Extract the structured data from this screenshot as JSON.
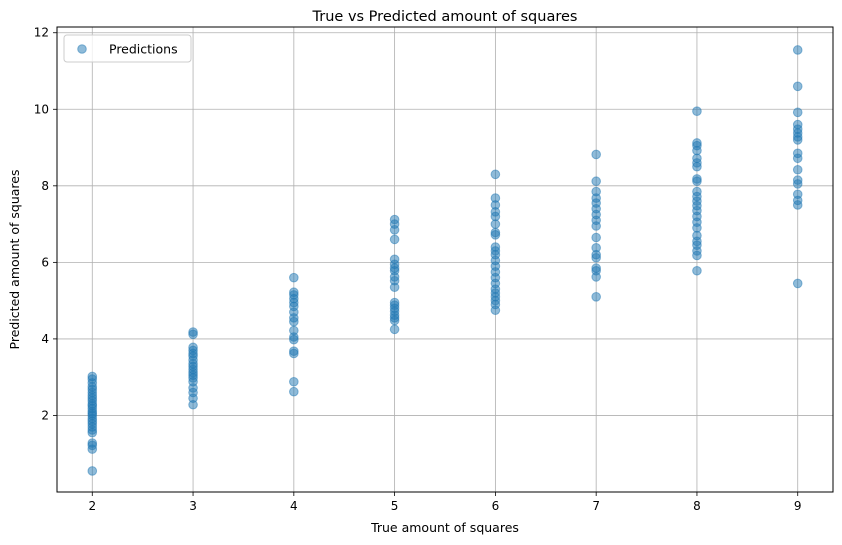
{
  "chart_data": {
    "type": "scatter",
    "title": "True vs Predicted amount of squares",
    "xlabel": "True amount of squares",
    "ylabel": "Predicted amount of squares",
    "xlim": [
      1.65,
      9.35
    ],
    "ylim": [
      0.0,
      12.15
    ],
    "xticks": [
      2,
      3,
      4,
      5,
      6,
      7,
      8,
      9
    ],
    "yticks": [
      2,
      4,
      6,
      8,
      10,
      12
    ],
    "grid": true,
    "legend_position": "top-left",
    "series": [
      {
        "name": "Predictions",
        "color": "#1f77b4",
        "alpha": 0.5,
        "points": [
          [
            2,
            0.55
          ],
          [
            2,
            1.12
          ],
          [
            2,
            1.22
          ],
          [
            2,
            1.28
          ],
          [
            2,
            1.55
          ],
          [
            2,
            1.62
          ],
          [
            2,
            1.7
          ],
          [
            2,
            1.78
          ],
          [
            2,
            1.85
          ],
          [
            2,
            1.92
          ],
          [
            2,
            2.0
          ],
          [
            2,
            2.05
          ],
          [
            2,
            2.1
          ],
          [
            2,
            2.18
          ],
          [
            2,
            2.25
          ],
          [
            2,
            2.3
          ],
          [
            2,
            2.38
          ],
          [
            2,
            2.45
          ],
          [
            2,
            2.52
          ],
          [
            2,
            2.6
          ],
          [
            2,
            2.68
          ],
          [
            2,
            2.75
          ],
          [
            2,
            2.85
          ],
          [
            2,
            2.95
          ],
          [
            2,
            3.02
          ],
          [
            3,
            2.28
          ],
          [
            3,
            2.45
          ],
          [
            3,
            2.6
          ],
          [
            3,
            2.72
          ],
          [
            3,
            2.88
          ],
          [
            3,
            2.98
          ],
          [
            3,
            3.05
          ],
          [
            3,
            3.12
          ],
          [
            3,
            3.2
          ],
          [
            3,
            3.28
          ],
          [
            3,
            3.35
          ],
          [
            3,
            3.45
          ],
          [
            3,
            3.55
          ],
          [
            3,
            3.62
          ],
          [
            3,
            3.7
          ],
          [
            3,
            3.78
          ],
          [
            3,
            4.12
          ],
          [
            3,
            4.18
          ],
          [
            4,
            2.62
          ],
          [
            4,
            2.88
          ],
          [
            4,
            3.62
          ],
          [
            4,
            3.68
          ],
          [
            4,
            3.98
          ],
          [
            4,
            4.05
          ],
          [
            4,
            4.22
          ],
          [
            4,
            4.45
          ],
          [
            4,
            4.55
          ],
          [
            4,
            4.7
          ],
          [
            4,
            4.85
          ],
          [
            4,
            4.95
          ],
          [
            4,
            5.05
          ],
          [
            4,
            5.15
          ],
          [
            4,
            5.22
          ],
          [
            4,
            5.6
          ],
          [
            5,
            4.25
          ],
          [
            5,
            4.48
          ],
          [
            5,
            4.55
          ],
          [
            5,
            4.62
          ],
          [
            5,
            4.72
          ],
          [
            5,
            4.8
          ],
          [
            5,
            4.88
          ],
          [
            5,
            4.95
          ],
          [
            5,
            5.35
          ],
          [
            5,
            5.52
          ],
          [
            5,
            5.62
          ],
          [
            5,
            5.78
          ],
          [
            5,
            5.85
          ],
          [
            5,
            5.95
          ],
          [
            5,
            6.08
          ],
          [
            5,
            6.6
          ],
          [
            5,
            6.85
          ],
          [
            5,
            7.0
          ],
          [
            5,
            7.12
          ],
          [
            6,
            4.75
          ],
          [
            6,
            4.9
          ],
          [
            6,
            5.0
          ],
          [
            6,
            5.1
          ],
          [
            6,
            5.2
          ],
          [
            6,
            5.3
          ],
          [
            6,
            5.45
          ],
          [
            6,
            5.6
          ],
          [
            6,
            5.75
          ],
          [
            6,
            5.9
          ],
          [
            6,
            6.05
          ],
          [
            6,
            6.2
          ],
          [
            6,
            6.3
          ],
          [
            6,
            6.4
          ],
          [
            6,
            6.72
          ],
          [
            6,
            6.78
          ],
          [
            6,
            7.0
          ],
          [
            6,
            7.2
          ],
          [
            6,
            7.32
          ],
          [
            6,
            7.5
          ],
          [
            6,
            7.68
          ],
          [
            6,
            8.3
          ],
          [
            7,
            5.1
          ],
          [
            7,
            5.62
          ],
          [
            7,
            5.78
          ],
          [
            7,
            5.85
          ],
          [
            7,
            6.12
          ],
          [
            7,
            6.2
          ],
          [
            7,
            6.38
          ],
          [
            7,
            6.65
          ],
          [
            7,
            6.95
          ],
          [
            7,
            7.1
          ],
          [
            7,
            7.25
          ],
          [
            7,
            7.4
          ],
          [
            7,
            7.55
          ],
          [
            7,
            7.68
          ],
          [
            7,
            7.85
          ],
          [
            7,
            8.12
          ],
          [
            7,
            8.82
          ],
          [
            8,
            5.78
          ],
          [
            8,
            6.18
          ],
          [
            8,
            6.3
          ],
          [
            8,
            6.45
          ],
          [
            8,
            6.55
          ],
          [
            8,
            6.7
          ],
          [
            8,
            6.9
          ],
          [
            8,
            7.05
          ],
          [
            8,
            7.2
          ],
          [
            8,
            7.35
          ],
          [
            8,
            7.48
          ],
          [
            8,
            7.6
          ],
          [
            8,
            7.72
          ],
          [
            8,
            7.85
          ],
          [
            8,
            8.12
          ],
          [
            8,
            8.18
          ],
          [
            8,
            8.5
          ],
          [
            8,
            8.6
          ],
          [
            8,
            8.72
          ],
          [
            8,
            8.92
          ],
          [
            8,
            9.05
          ],
          [
            8,
            9.12
          ],
          [
            8,
            9.95
          ],
          [
            9,
            5.45
          ],
          [
            9,
            7.5
          ],
          [
            9,
            7.62
          ],
          [
            9,
            7.78
          ],
          [
            9,
            8.05
          ],
          [
            9,
            8.15
          ],
          [
            9,
            8.42
          ],
          [
            9,
            8.72
          ],
          [
            9,
            8.85
          ],
          [
            9,
            9.2
          ],
          [
            9,
            9.28
          ],
          [
            9,
            9.38
          ],
          [
            9,
            9.48
          ],
          [
            9,
            9.6
          ],
          [
            9,
            9.92
          ],
          [
            9,
            10.6
          ],
          [
            9,
            11.55
          ]
        ]
      }
    ]
  }
}
